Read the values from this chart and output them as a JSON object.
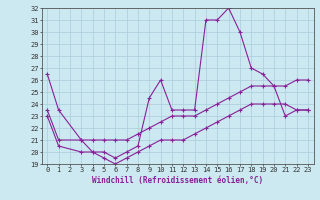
{
  "xlabel": "Windchill (Refroidissement éolien,°C)",
  "ylabel": "",
  "background_color": "#cce8f0",
  "line_color": "#882299",
  "grid_color": "#aaccdd",
  "xlim": [
    -0.5,
    23.5
  ],
  "ylim": [
    19,
    32
  ],
  "yticks": [
    19,
    20,
    21,
    22,
    23,
    24,
    25,
    26,
    27,
    28,
    29,
    30,
    31,
    32
  ],
  "xticks": [
    0,
    1,
    2,
    3,
    4,
    5,
    6,
    7,
    8,
    9,
    10,
    11,
    12,
    13,
    14,
    15,
    16,
    17,
    18,
    19,
    20,
    21,
    22,
    23
  ],
  "line1_x": [
    0,
    1,
    3,
    4,
    5,
    6,
    7,
    8,
    9,
    10,
    11,
    12,
    13,
    14,
    15,
    16,
    17,
    18,
    19,
    20,
    21,
    22,
    23
  ],
  "line1_y": [
    26.5,
    23.5,
    21.0,
    20.0,
    20.0,
    19.5,
    20.0,
    20.5,
    24.5,
    26.0,
    23.5,
    23.5,
    23.5,
    31.0,
    31.0,
    32.0,
    30.0,
    27.0,
    26.5,
    25.5,
    23.0,
    23.5,
    23.5
  ],
  "line2_x": [
    0,
    1,
    3,
    4,
    5,
    6,
    7,
    8,
    9,
    10,
    11,
    12,
    13,
    14,
    15,
    16,
    17,
    18,
    19,
    20,
    21,
    22,
    23
  ],
  "line2_y": [
    23.5,
    21.0,
    21.0,
    21.0,
    21.0,
    21.0,
    21.0,
    21.5,
    22.0,
    22.5,
    23.0,
    23.0,
    23.0,
    23.5,
    24.0,
    24.5,
    25.0,
    25.5,
    25.5,
    25.5,
    25.5,
    26.0,
    26.0
  ],
  "line3_x": [
    0,
    1,
    3,
    4,
    5,
    6,
    7,
    8,
    9,
    10,
    11,
    12,
    13,
    14,
    15,
    16,
    17,
    18,
    19,
    20,
    21,
    22,
    23
  ],
  "line3_y": [
    23.0,
    20.5,
    20.0,
    20.0,
    19.5,
    19.0,
    19.5,
    20.0,
    20.5,
    21.0,
    21.0,
    21.0,
    21.5,
    22.0,
    22.5,
    23.0,
    23.5,
    24.0,
    24.0,
    24.0,
    24.0,
    23.5,
    23.5
  ],
  "marker": "+",
  "markersize": 3,
  "linewidth": 0.8,
  "tick_fontsize": 5.0,
  "xlabel_fontsize": 5.5
}
